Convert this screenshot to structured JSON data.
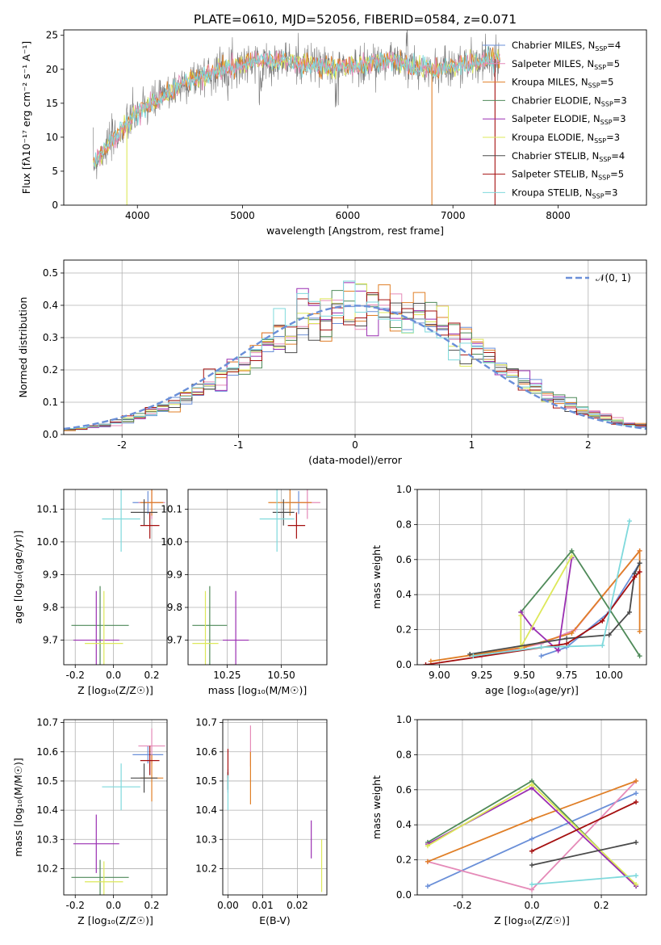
{
  "figure": {
    "title": "PLATE=0610, MJD=52056, FIBERID=0584, z=0.071"
  },
  "colors": {
    "Chabrier MILES": "#6a8fd8",
    "Salpeter MILES": "#e58ab8",
    "Kroupa MILES": "#e07f27",
    "Chabrier ELODIE": "#4f8a59",
    "Salpeter ELODIE": "#9a2fb2",
    "Kroupa ELODIE": "#dde85a",
    "Chabrier STELIB": "#4a4a4a",
    "Salpeter STELIB": "#a51010",
    "Kroupa STELIB": "#7fd9dc",
    "gauss": "#6a8fd8"
  },
  "chart_data": [
    {
      "id": "spectrum",
      "type": "line",
      "title": "PLATE=0610, MJD=52056, FIBERID=0584, z=0.071",
      "xlabel": "wavelength [Angstrom, rest frame]",
      "ylabel": "Flux [fλ10⁻¹⁷ erg cm⁻² s⁻¹ A⁻¹]",
      "xlim": [
        3300,
        8840
      ],
      "ylim": [
        0,
        25.8
      ],
      "xticks": [
        4000,
        5000,
        6000,
        7000,
        8000
      ],
      "yticks": [
        0,
        5,
        10,
        15,
        20,
        25
      ],
      "legend_position": "right",
      "series": [
        {
          "name": "Chabrier MILES, N_SSP=4"
        },
        {
          "name": "Salpeter MILES, N_SSP=5"
        },
        {
          "name": "Kroupa MILES, N_SSP=5"
        },
        {
          "name": "Chabrier ELODIE, N_SSP=3"
        },
        {
          "name": "Salpeter ELODIE, N_SSP=3"
        },
        {
          "name": "Kroupa ELODIE, N_SSP=3"
        },
        {
          "name": "Chabrier STELIB, N_SSP=4"
        },
        {
          "name": "Salpeter STELIB, N_SSP=5"
        },
        {
          "name": "Kroupa STELIB, N_SSP=3"
        }
      ],
      "continuum_x": [
        3580,
        3700,
        3850,
        4000,
        4200,
        4400,
        4600,
        4800,
        5000,
        5200,
        5400,
        5600,
        5800,
        6000,
        6200,
        6400,
        6600,
        6800,
        7000,
        7200,
        7400
      ],
      "continuum_y": [
        6,
        8.5,
        11,
        13.5,
        15.5,
        17.5,
        19,
        20,
        20.8,
        21.2,
        21.2,
        20.8,
        20.5,
        20.3,
        20.8,
        21.5,
        20.5,
        20.0,
        20.5,
        21.0,
        21.5
      ],
      "data_end_x": 7450
    },
    {
      "id": "residuals",
      "type": "histogram",
      "xlabel": "(data-model)/error",
      "ylabel": "Normed distribution",
      "xlim": [
        -2.5,
        2.5
      ],
      "ylim": [
        0,
        0.54
      ],
      "xticks": [
        -2,
        -1,
        0,
        1,
        2
      ],
      "yticks": [
        0.0,
        0.1,
        0.2,
        0.3,
        0.4,
        0.5
      ],
      "grid": true,
      "legend_position": "top-right",
      "gaussian": {
        "name": "𝒩(0, 1)",
        "mean": 0,
        "sigma": 1,
        "style": "dashed"
      },
      "bin_width": 0.1
    },
    {
      "id": "age-vs-Z",
      "type": "errorbar",
      "xlabel": "Z [log₁₀(Z/Z☉)]",
      "ylabel": "age  [log₁₀(age/yr)]",
      "xlim": [
        -0.26,
        0.28
      ],
      "ylim": [
        9.625,
        10.16
      ],
      "xticks": [
        -0.2,
        0.0,
        0.2
      ],
      "yticks": [
        9.7,
        9.8,
        9.9,
        10.0,
        10.1
      ],
      "grid": true,
      "points": [
        {
          "model": "Chabrier MILES",
          "x": 0.18,
          "y": 10.12,
          "xerr": 0.08,
          "yerr": 0.035
        },
        {
          "model": "Salpeter MILES",
          "x": 0.2,
          "y": 10.12,
          "xerr": 0.07,
          "yerr": 0.05
        },
        {
          "model": "Kroupa MILES",
          "x": 0.2,
          "y": 10.12,
          "xerr": 0.06,
          "yerr": 0.04
        },
        {
          "model": "Chabrier ELODIE",
          "x": -0.07,
          "y": 9.745,
          "xerr": 0.15,
          "yerr": 0.12
        },
        {
          "model": "Salpeter ELODIE",
          "x": -0.09,
          "y": 9.7,
          "xerr": 0.12,
          "yerr": 0.15
        },
        {
          "model": "Kroupa ELODIE",
          "x": -0.05,
          "y": 9.69,
          "xerr": 0.1,
          "yerr": 0.16
        },
        {
          "model": "Chabrier STELIB",
          "x": 0.16,
          "y": 10.09,
          "xerr": 0.07,
          "yerr": 0.04
        },
        {
          "model": "Salpeter STELIB",
          "x": 0.19,
          "y": 10.05,
          "xerr": 0.05,
          "yerr": 0.04
        },
        {
          "model": "Kroupa STELIB",
          "x": 0.04,
          "y": 10.07,
          "xerr": 0.1,
          "yerr": 0.1
        }
      ]
    },
    {
      "id": "age-vs-mass",
      "type": "errorbar",
      "xlabel": "mass [log₁₀(M/M☉)]",
      "ylabel": "",
      "xlim": [
        10.07,
        10.71
      ],
      "ylim": [
        9.625,
        10.16
      ],
      "xticks": [
        10.25,
        10.5
      ],
      "xtick_labels": [
        "10.25",
        "10.50"
      ],
      "yticks": [
        9.7,
        9.8,
        9.9,
        10.0,
        10.1
      ],
      "grid": true,
      "points": [
        {
          "model": "Chabrier MILES",
          "x": 10.58,
          "y": 10.12,
          "xerr": 0.06,
          "yerr": 0.035
        },
        {
          "model": "Salpeter MILES",
          "x": 10.62,
          "y": 10.12,
          "xerr": 0.06,
          "yerr": 0.05
        },
        {
          "model": "Kroupa MILES",
          "x": 10.54,
          "y": 10.12,
          "xerr": 0.1,
          "yerr": 0.04
        },
        {
          "model": "Chabrier ELODIE",
          "x": 10.17,
          "y": 9.745,
          "xerr": 0.08,
          "yerr": 0.12
        },
        {
          "model": "Salpeter ELODIE",
          "x": 10.29,
          "y": 9.7,
          "xerr": 0.06,
          "yerr": 0.15
        },
        {
          "model": "Kroupa ELODIE",
          "x": 10.15,
          "y": 9.69,
          "xerr": 0.06,
          "yerr": 0.16
        },
        {
          "model": "Chabrier STELIB",
          "x": 10.51,
          "y": 10.09,
          "xerr": 0.05,
          "yerr": 0.04
        },
        {
          "model": "Salpeter STELIB",
          "x": 10.57,
          "y": 10.05,
          "xerr": 0.04,
          "yerr": 0.04
        },
        {
          "model": "Kroupa STELIB",
          "x": 10.48,
          "y": 10.07,
          "xerr": 0.08,
          "yerr": 0.1
        }
      ]
    },
    {
      "id": "weight-vs-age",
      "type": "line",
      "xlabel": "age  [log₁₀(age/yr)]",
      "ylabel": "mass weight",
      "xlim": [
        8.87,
        10.22
      ],
      "ylim": [
        0,
        1.0
      ],
      "xticks": [
        9.0,
        9.25,
        9.5,
        9.75,
        10.0
      ],
      "xtick_labels": [
        "9.00",
        "9.25",
        "9.50",
        "9.75",
        "10.00"
      ],
      "yticks": [
        0.0,
        0.2,
        0.4,
        0.6,
        0.8,
        1.0
      ],
      "grid": true,
      "series": [
        {
          "model": "Chabrier MILES",
          "x": [
            9.6,
            9.75,
            10.0,
            10.18
          ],
          "y": [
            0.05,
            0.1,
            0.3,
            0.58
          ]
        },
        {
          "model": "Salpeter MILES",
          "x": [
            9.25,
            9.6,
            9.8,
            10.18
          ],
          "y": [
            0.05,
            0.12,
            0.2,
            0.65
          ]
        },
        {
          "model": "Kroupa MILES",
          "x": [
            8.95,
            9.5,
            9.78,
            10.18,
            10.18
          ],
          "y": [
            0.02,
            0.1,
            0.18,
            0.65,
            0.19
          ]
        },
        {
          "model": "Chabrier ELODIE",
          "x": [
            9.48,
            9.78,
            10.18
          ],
          "y": [
            0.3,
            0.65,
            0.05
          ]
        },
        {
          "model": "Salpeter ELODIE",
          "x": [
            9.48,
            9.55,
            9.7,
            9.78
          ],
          "y": [
            0.3,
            0.21,
            0.08,
            0.61
          ]
        },
        {
          "model": "Kroupa ELODIE",
          "x": [
            9.48,
            9.48,
            9.78
          ],
          "y": [
            0.28,
            0.1,
            0.62
          ]
        },
        {
          "model": "Chabrier STELIB",
          "x": [
            9.18,
            9.75,
            10.0,
            10.12,
            10.15,
            10.18
          ],
          "y": [
            0.06,
            0.15,
            0.17,
            0.3,
            0.52,
            0.58
          ]
        },
        {
          "model": "Salpeter STELIB",
          "x": [
            8.92,
            9.75,
            9.96,
            10.15,
            10.18
          ],
          "y": [
            0.0,
            0.12,
            0.25,
            0.5,
            0.53
          ]
        },
        {
          "model": "Kroupa STELIB",
          "x": [
            9.2,
            9.6,
            9.96,
            10.12
          ],
          "y": [
            0.05,
            0.1,
            0.11,
            0.82
          ]
        }
      ]
    },
    {
      "id": "mass-vs-Z",
      "type": "errorbar",
      "xlabel": "Z [log₁₀(Z/Z☉)]",
      "ylabel": "mass [log₁₀(M/M☉)]",
      "xlim": [
        -0.26,
        0.28
      ],
      "ylim": [
        10.11,
        10.71
      ],
      "xticks": [
        -0.2,
        0.0,
        0.2
      ],
      "yticks": [
        10.2,
        10.3,
        10.4,
        10.5,
        10.6,
        10.7
      ],
      "grid": true,
      "points": [
        {
          "model": "Chabrier MILES",
          "x": 0.18,
          "y": 10.59,
          "xerr": 0.08,
          "yerr": 0.03
        },
        {
          "model": "Salpeter MILES",
          "x": 0.2,
          "y": 10.62,
          "xerr": 0.07,
          "yerr": 0.06
        },
        {
          "model": "Kroupa MILES",
          "x": 0.2,
          "y": 10.51,
          "xerr": 0.06,
          "yerr": 0.08
        },
        {
          "model": "Chabrier ELODIE",
          "x": -0.07,
          "y": 10.17,
          "xerr": 0.15,
          "yerr": 0.06
        },
        {
          "model": "Salpeter ELODIE",
          "x": -0.09,
          "y": 10.285,
          "xerr": 0.12,
          "yerr": 0.1
        },
        {
          "model": "Kroupa ELODIE",
          "x": -0.05,
          "y": 10.155,
          "xerr": 0.1,
          "yerr": 0.07
        },
        {
          "model": "Chabrier STELIB",
          "x": 0.16,
          "y": 10.51,
          "xerr": 0.07,
          "yerr": 0.05
        },
        {
          "model": "Salpeter STELIB",
          "x": 0.19,
          "y": 10.57,
          "xerr": 0.05,
          "yerr": 0.05
        },
        {
          "model": "Kroupa STELIB",
          "x": 0.04,
          "y": 10.48,
          "xerr": 0.1,
          "yerr": 0.08
        }
      ]
    },
    {
      "id": "mass-vs-EBV",
      "type": "errorbar",
      "xlabel": "E(B-V)",
      "ylabel": "",
      "xlim": [
        -0.0015,
        0.0285
      ],
      "ylim": [
        10.11,
        10.71
      ],
      "xticks": [
        0.0,
        0.01,
        0.02
      ],
      "xtick_labels": [
        "0.00",
        "0.01",
        "0.02"
      ],
      "yticks": [
        10.2,
        10.3,
        10.4,
        10.5,
        10.6,
        10.7
      ],
      "grid": true,
      "points": [
        {
          "model": "Chabrier MILES",
          "x": 0.0,
          "y": 10.5,
          "xerr": 0,
          "yerr": 0.04
        },
        {
          "model": "Salpeter MILES",
          "x": 0.0065,
          "y": 10.62,
          "xerr": 0,
          "yerr": 0.07
        },
        {
          "model": "Kroupa MILES",
          "x": 0.0065,
          "y": 10.51,
          "xerr": 0,
          "yerr": 0.09
        },
        {
          "model": "Chabrier ELODIE",
          "x": 0.0,
          "y": 10.5,
          "xerr": 0,
          "yerr": 0.03
        },
        {
          "model": "Salpeter ELODIE",
          "x": 0.024,
          "y": 10.3,
          "xerr": 0,
          "yerr": 0.065
        },
        {
          "model": "Kroupa ELODIE",
          "x": 0.027,
          "y": 10.21,
          "xerr": 0,
          "yerr": 0.09
        },
        {
          "model": "Chabrier STELIB",
          "x": 0.0,
          "y": 10.5,
          "xerr": 0,
          "yerr": 0.03
        },
        {
          "model": "Salpeter STELIB",
          "x": 0.0,
          "y": 10.56,
          "xerr": 0,
          "yerr": 0.05
        },
        {
          "model": "Kroupa STELIB",
          "x": 0.0,
          "y": 10.46,
          "xerr": 0,
          "yerr": 0.06
        }
      ]
    },
    {
      "id": "weight-vs-Z",
      "type": "line",
      "xlabel": "Z [log₁₀(Z/Z☉)]",
      "ylabel": "mass weight",
      "xlim": [
        -0.33,
        0.33
      ],
      "ylim": [
        0,
        1.0
      ],
      "xticks": [
        -0.2,
        0.0,
        0.2
      ],
      "yticks": [
        0.0,
        0.2,
        0.4,
        0.6,
        0.8,
        1.0
      ],
      "grid": true,
      "series": [
        {
          "model": "Chabrier MILES",
          "x": [
            -0.3,
            0.0,
            0.3
          ],
          "y": [
            0.05,
            0.32,
            0.58
          ]
        },
        {
          "model": "Salpeter MILES",
          "x": [
            -0.3,
            0.0,
            0.3
          ],
          "y": [
            0.19,
            0.03,
            0.65
          ]
        },
        {
          "model": "Kroupa MILES",
          "x": [
            -0.3,
            0.0,
            0.3
          ],
          "y": [
            0.19,
            0.43,
            0.65
          ]
        },
        {
          "model": "Chabrier ELODIE",
          "x": [
            -0.3,
            0.0,
            0.3
          ],
          "y": [
            0.3,
            0.65,
            0.05
          ]
        },
        {
          "model": "Salpeter ELODIE",
          "x": [
            -0.3,
            0.0,
            0.3
          ],
          "y": [
            0.29,
            0.61,
            0.05
          ]
        },
        {
          "model": "Kroupa ELODIE",
          "x": [
            -0.3,
            0.0,
            0.3
          ],
          "y": [
            0.28,
            0.63,
            0.06
          ]
        },
        {
          "model": "Chabrier STELIB",
          "x": [
            0.0,
            0.3
          ],
          "y": [
            0.17,
            0.3
          ]
        },
        {
          "model": "Salpeter STELIB",
          "x": [
            0.0,
            0.3
          ],
          "y": [
            0.25,
            0.53
          ]
        },
        {
          "model": "Kroupa STELIB",
          "x": [
            0.0,
            0.3
          ],
          "y": [
            0.06,
            0.11
          ]
        }
      ]
    }
  ]
}
